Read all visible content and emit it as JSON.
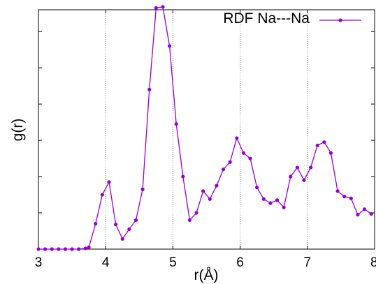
{
  "chart_data": {
    "type": "line",
    "title": "",
    "xlabel": "r(Å)",
    "ylabel": "g(r)",
    "xlim": [
      3,
      8
    ],
    "ylim": [
      0,
      6.6
    ],
    "x_ticks": [
      3,
      4,
      5,
      6,
      7,
      8
    ],
    "x_tick_labels": [
      "3",
      "4",
      "5",
      "6",
      "7",
      "8"
    ],
    "y_ticks": [
      0,
      1,
      2,
      3,
      4,
      5,
      6
    ],
    "y_tick_labels": [],
    "grid": "vertical dotted lines at x = 4, 5, 6, 7",
    "legend_position": "top-right",
    "series": [
      {
        "name": "RDF Na---Na",
        "color": "#9400D3",
        "marker": "circle",
        "x": [
          3.0,
          3.1,
          3.2,
          3.3,
          3.4,
          3.5,
          3.6,
          3.7,
          3.75,
          3.85,
          3.95,
          4.05,
          4.15,
          4.25,
          4.35,
          4.45,
          4.55,
          4.65,
          4.75,
          4.85,
          4.95,
          5.05,
          5.15,
          5.25,
          5.35,
          5.45,
          5.55,
          5.65,
          5.75,
          5.85,
          5.95,
          6.05,
          6.15,
          6.25,
          6.35,
          6.45,
          6.55,
          6.65,
          6.75,
          6.85,
          6.95,
          7.05,
          7.15,
          7.25,
          7.35,
          7.45,
          7.55,
          7.65,
          7.75,
          7.85,
          7.95
        ],
        "y": [
          0.0,
          0.0,
          0.0,
          0.0,
          0.0,
          0.0,
          0.0,
          0.02,
          0.05,
          0.7,
          1.5,
          1.85,
          0.68,
          0.28,
          0.55,
          0.8,
          1.65,
          4.4,
          6.65,
          6.68,
          5.6,
          3.45,
          2.0,
          0.8,
          1.0,
          1.6,
          1.38,
          1.75,
          2.2,
          2.4,
          3.06,
          2.65,
          2.5,
          1.7,
          1.38,
          1.27,
          1.35,
          1.15,
          2.0,
          2.25,
          1.9,
          2.25,
          2.86,
          2.95,
          2.65,
          1.6,
          1.45,
          1.4,
          0.95,
          1.1,
          0.97
        ]
      }
    ]
  }
}
